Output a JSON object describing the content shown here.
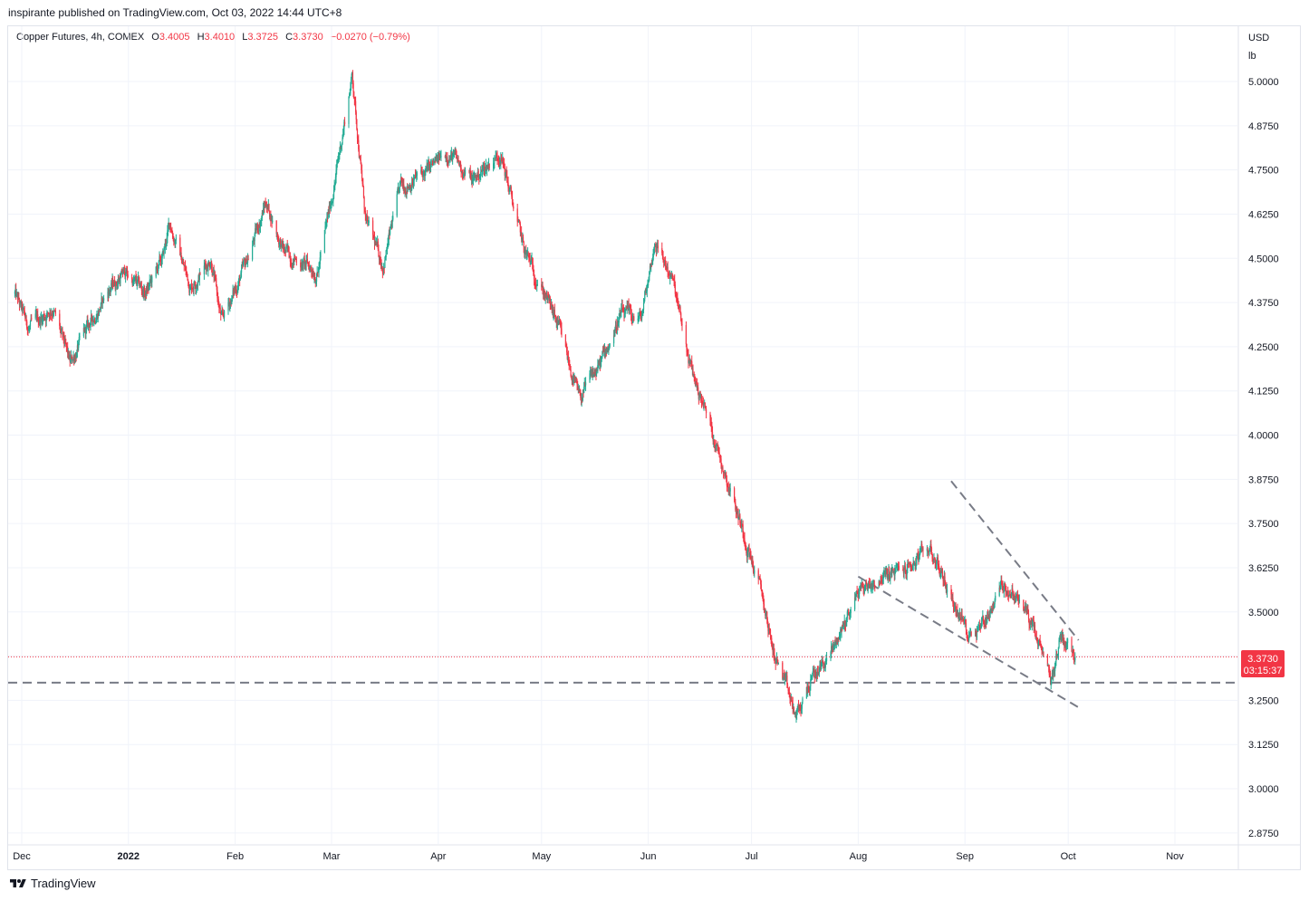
{
  "header": {
    "published_by": "inspirante published on TradingView.com, Oct 03, 2022 14:44 UTC+8"
  },
  "legend": {
    "symbol": "Copper Futures, 4h, COMEX",
    "open_label": "O",
    "open": "3.4005",
    "high_label": "H",
    "high": "3.4010",
    "low_label": "L",
    "low": "3.3725",
    "close_label": "C",
    "close": "3.3730",
    "change": "−0.0270 (−0.79%)"
  },
  "axis": {
    "currency": "USD",
    "unit": "lb"
  },
  "price_badge": {
    "price": "3.3730",
    "countdown": "03:15:37"
  },
  "footer": {
    "brand": "TradingView"
  },
  "colors": {
    "up": "#22ab94",
    "down": "#f23645",
    "grid": "#f0f3fa",
    "dashed_lines": "#787b86"
  },
  "chart_data": {
    "type": "candlestick",
    "title": "",
    "interval": "4h",
    "x_tick_labels": [
      "Dec",
      "2022",
      "Feb",
      "Mar",
      "Apr",
      "May",
      "Jun",
      "Jul",
      "Aug",
      "Sep",
      "Oct",
      "Nov"
    ],
    "y_tick_labels": [
      "5.0000",
      "4.8750",
      "4.7500",
      "4.6250",
      "4.5000",
      "4.3750",
      "4.2500",
      "4.1250",
      "4.0000",
      "3.8750",
      "3.7500",
      "3.6250",
      "3.5000",
      "3.3750",
      "3.2500",
      "3.1250",
      "3.0000",
      "2.8750"
    ],
    "ylim": [
      2.8,
      5.1
    ],
    "grid": true,
    "last_price": 3.373,
    "approx_close_path": [
      {
        "date": "2021-11-29",
        "close": 4.4
      },
      {
        "date": "2021-12-03",
        "close": 4.3
      },
      {
        "date": "2021-12-10",
        "close": 4.36
      },
      {
        "date": "2021-12-15",
        "close": 4.2
      },
      {
        "date": "2021-12-20",
        "close": 4.3
      },
      {
        "date": "2021-12-27",
        "close": 4.42
      },
      {
        "date": "2021-12-31",
        "close": 4.46
      },
      {
        "date": "2022-01-06",
        "close": 4.4
      },
      {
        "date": "2022-01-11",
        "close": 4.5
      },
      {
        "date": "2022-01-13",
        "close": 4.6
      },
      {
        "date": "2022-01-19",
        "close": 4.42
      },
      {
        "date": "2022-01-25",
        "close": 4.5
      },
      {
        "date": "2022-01-28",
        "close": 4.32
      },
      {
        "date": "2022-02-04",
        "close": 4.48
      },
      {
        "date": "2022-02-10",
        "close": 4.66
      },
      {
        "date": "2022-02-15",
        "close": 4.52
      },
      {
        "date": "2022-02-25",
        "close": 4.46
      },
      {
        "date": "2022-03-02",
        "close": 4.72
      },
      {
        "date": "2022-03-07",
        "close": 5.02
      },
      {
        "date": "2022-03-11",
        "close": 4.6
      },
      {
        "date": "2022-03-16",
        "close": 4.48
      },
      {
        "date": "2022-03-21",
        "close": 4.7
      },
      {
        "date": "2022-03-28",
        "close": 4.74
      },
      {
        "date": "2022-04-04",
        "close": 4.8
      },
      {
        "date": "2022-04-11",
        "close": 4.72
      },
      {
        "date": "2022-04-19",
        "close": 4.8
      },
      {
        "date": "2022-04-26",
        "close": 4.52
      },
      {
        "date": "2022-05-02",
        "close": 4.4
      },
      {
        "date": "2022-05-06",
        "close": 4.3
      },
      {
        "date": "2022-05-12",
        "close": 4.1
      },
      {
        "date": "2022-05-18",
        "close": 4.2
      },
      {
        "date": "2022-05-24",
        "close": 4.34
      },
      {
        "date": "2022-05-30",
        "close": 4.33
      },
      {
        "date": "2022-06-03",
        "close": 4.55
      },
      {
        "date": "2022-06-08",
        "close": 4.44
      },
      {
        "date": "2022-06-13",
        "close": 4.2
      },
      {
        "date": "2022-06-20",
        "close": 4.0
      },
      {
        "date": "2022-06-27",
        "close": 3.78
      },
      {
        "date": "2022-07-04",
        "close": 3.55
      },
      {
        "date": "2022-07-07",
        "close": 3.4
      },
      {
        "date": "2022-07-14",
        "close": 3.2
      },
      {
        "date": "2022-07-18",
        "close": 3.3
      },
      {
        "date": "2022-07-25",
        "close": 3.4
      },
      {
        "date": "2022-08-01",
        "close": 3.56
      },
      {
        "date": "2022-08-08",
        "close": 3.6
      },
      {
        "date": "2022-08-15",
        "close": 3.62
      },
      {
        "date": "2022-08-22",
        "close": 3.68
      },
      {
        "date": "2022-08-29",
        "close": 3.52
      },
      {
        "date": "2022-09-02",
        "close": 3.44
      },
      {
        "date": "2022-09-07",
        "close": 3.48
      },
      {
        "date": "2022-09-12",
        "close": 3.58
      },
      {
        "date": "2022-09-19",
        "close": 3.5
      },
      {
        "date": "2022-09-26",
        "close": 3.3
      },
      {
        "date": "2022-09-29",
        "close": 3.44
      },
      {
        "date": "2022-10-03",
        "close": 3.373
      }
    ],
    "drawings": [
      {
        "type": "horizontal-dashed",
        "price": 3.3
      },
      {
        "type": "trend-dashed",
        "from": {
          "date": "2022-08-28",
          "price": 3.87
        },
        "to": {
          "date": "2022-10-04",
          "price": 3.42
        }
      },
      {
        "type": "trend-dashed",
        "from": {
          "date": "2022-08-01",
          "price": 3.6
        },
        "to": {
          "date": "2022-10-04",
          "price": 3.23
        }
      }
    ]
  }
}
